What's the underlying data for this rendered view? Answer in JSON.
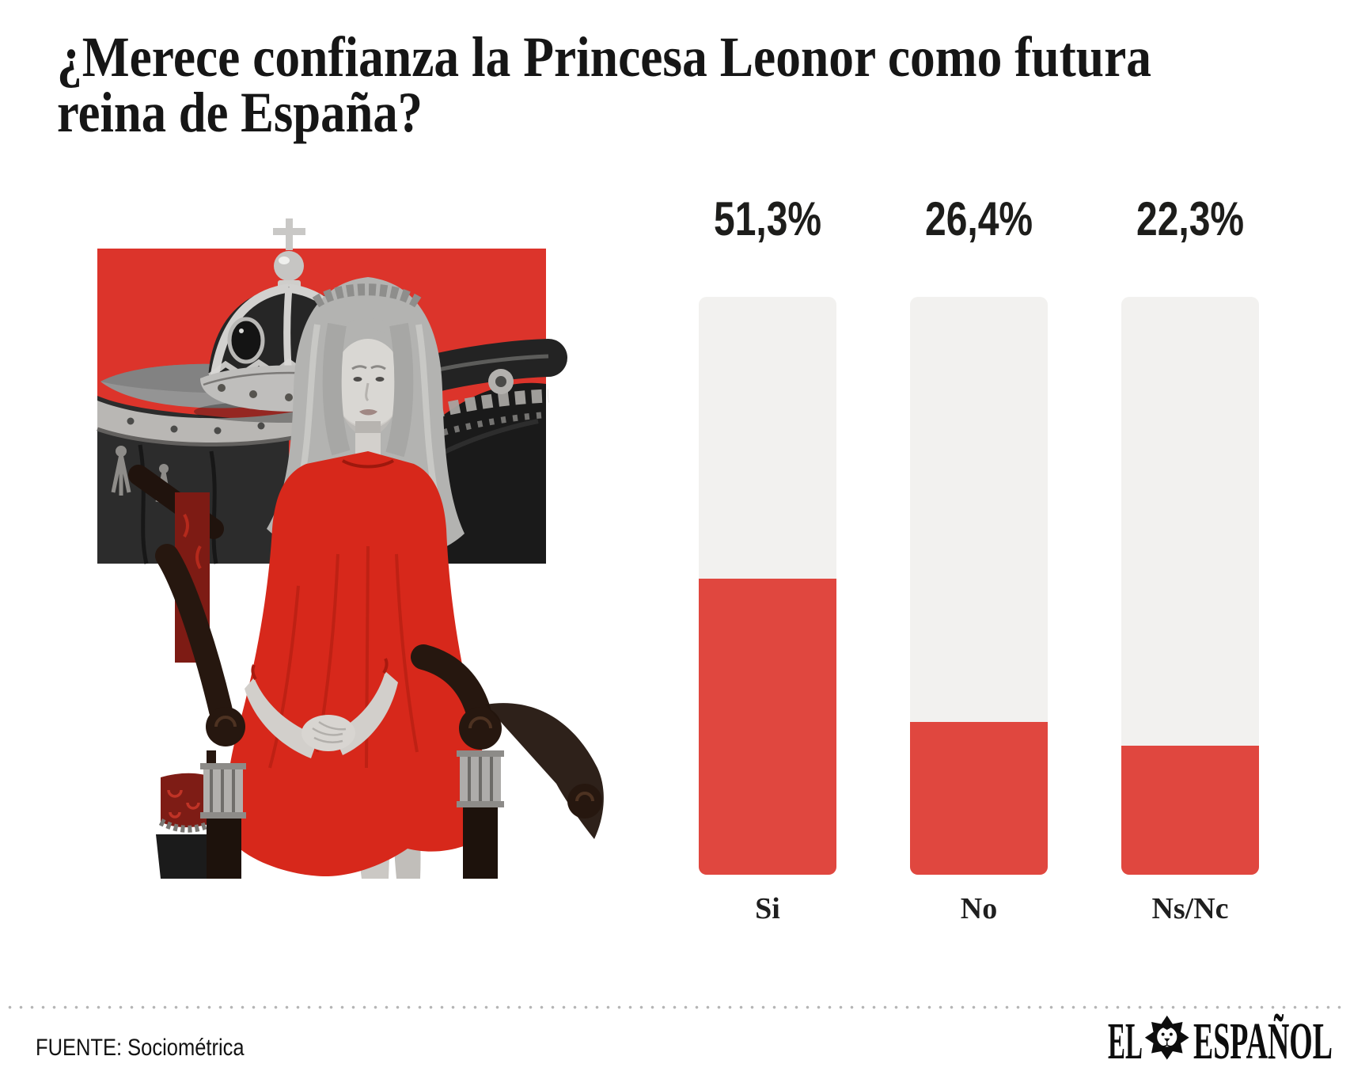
{
  "header": {
    "title_lines": [
      "¿Merece confianza la Princesa Leonor como futura",
      "reina de España?"
    ]
  },
  "photo": {
    "description": "Black-and-white cutout photo of Princess Leonor seated on a dark throne chair in a red dress, hands clasped on her lap, with the Spanish royal crown on an embroidered cushion beside her, over a red rectangle backdrop",
    "backdrop_red": "#dc342b",
    "dress_red": "#d7281b"
  },
  "chart_data": {
    "type": "bar",
    "categories": [
      "Si",
      "No",
      "Ns/Nc"
    ],
    "values": [
      51.3,
      26.4,
      22.3
    ],
    "value_labels": [
      "51,3%",
      "26,4%",
      "22,3%"
    ],
    "ylim": [
      0,
      100
    ],
    "bar_color": "#e0473f",
    "track_color": "#f2f1ef",
    "grid": false,
    "legend": "none",
    "orientation": "vertical"
  },
  "footer": {
    "source": "FUENTE: Sociométrica",
    "logo": {
      "left_word": "EL",
      "right_word": "ESPAÑOL"
    },
    "divider_dot_color": "#b5b5b5"
  }
}
